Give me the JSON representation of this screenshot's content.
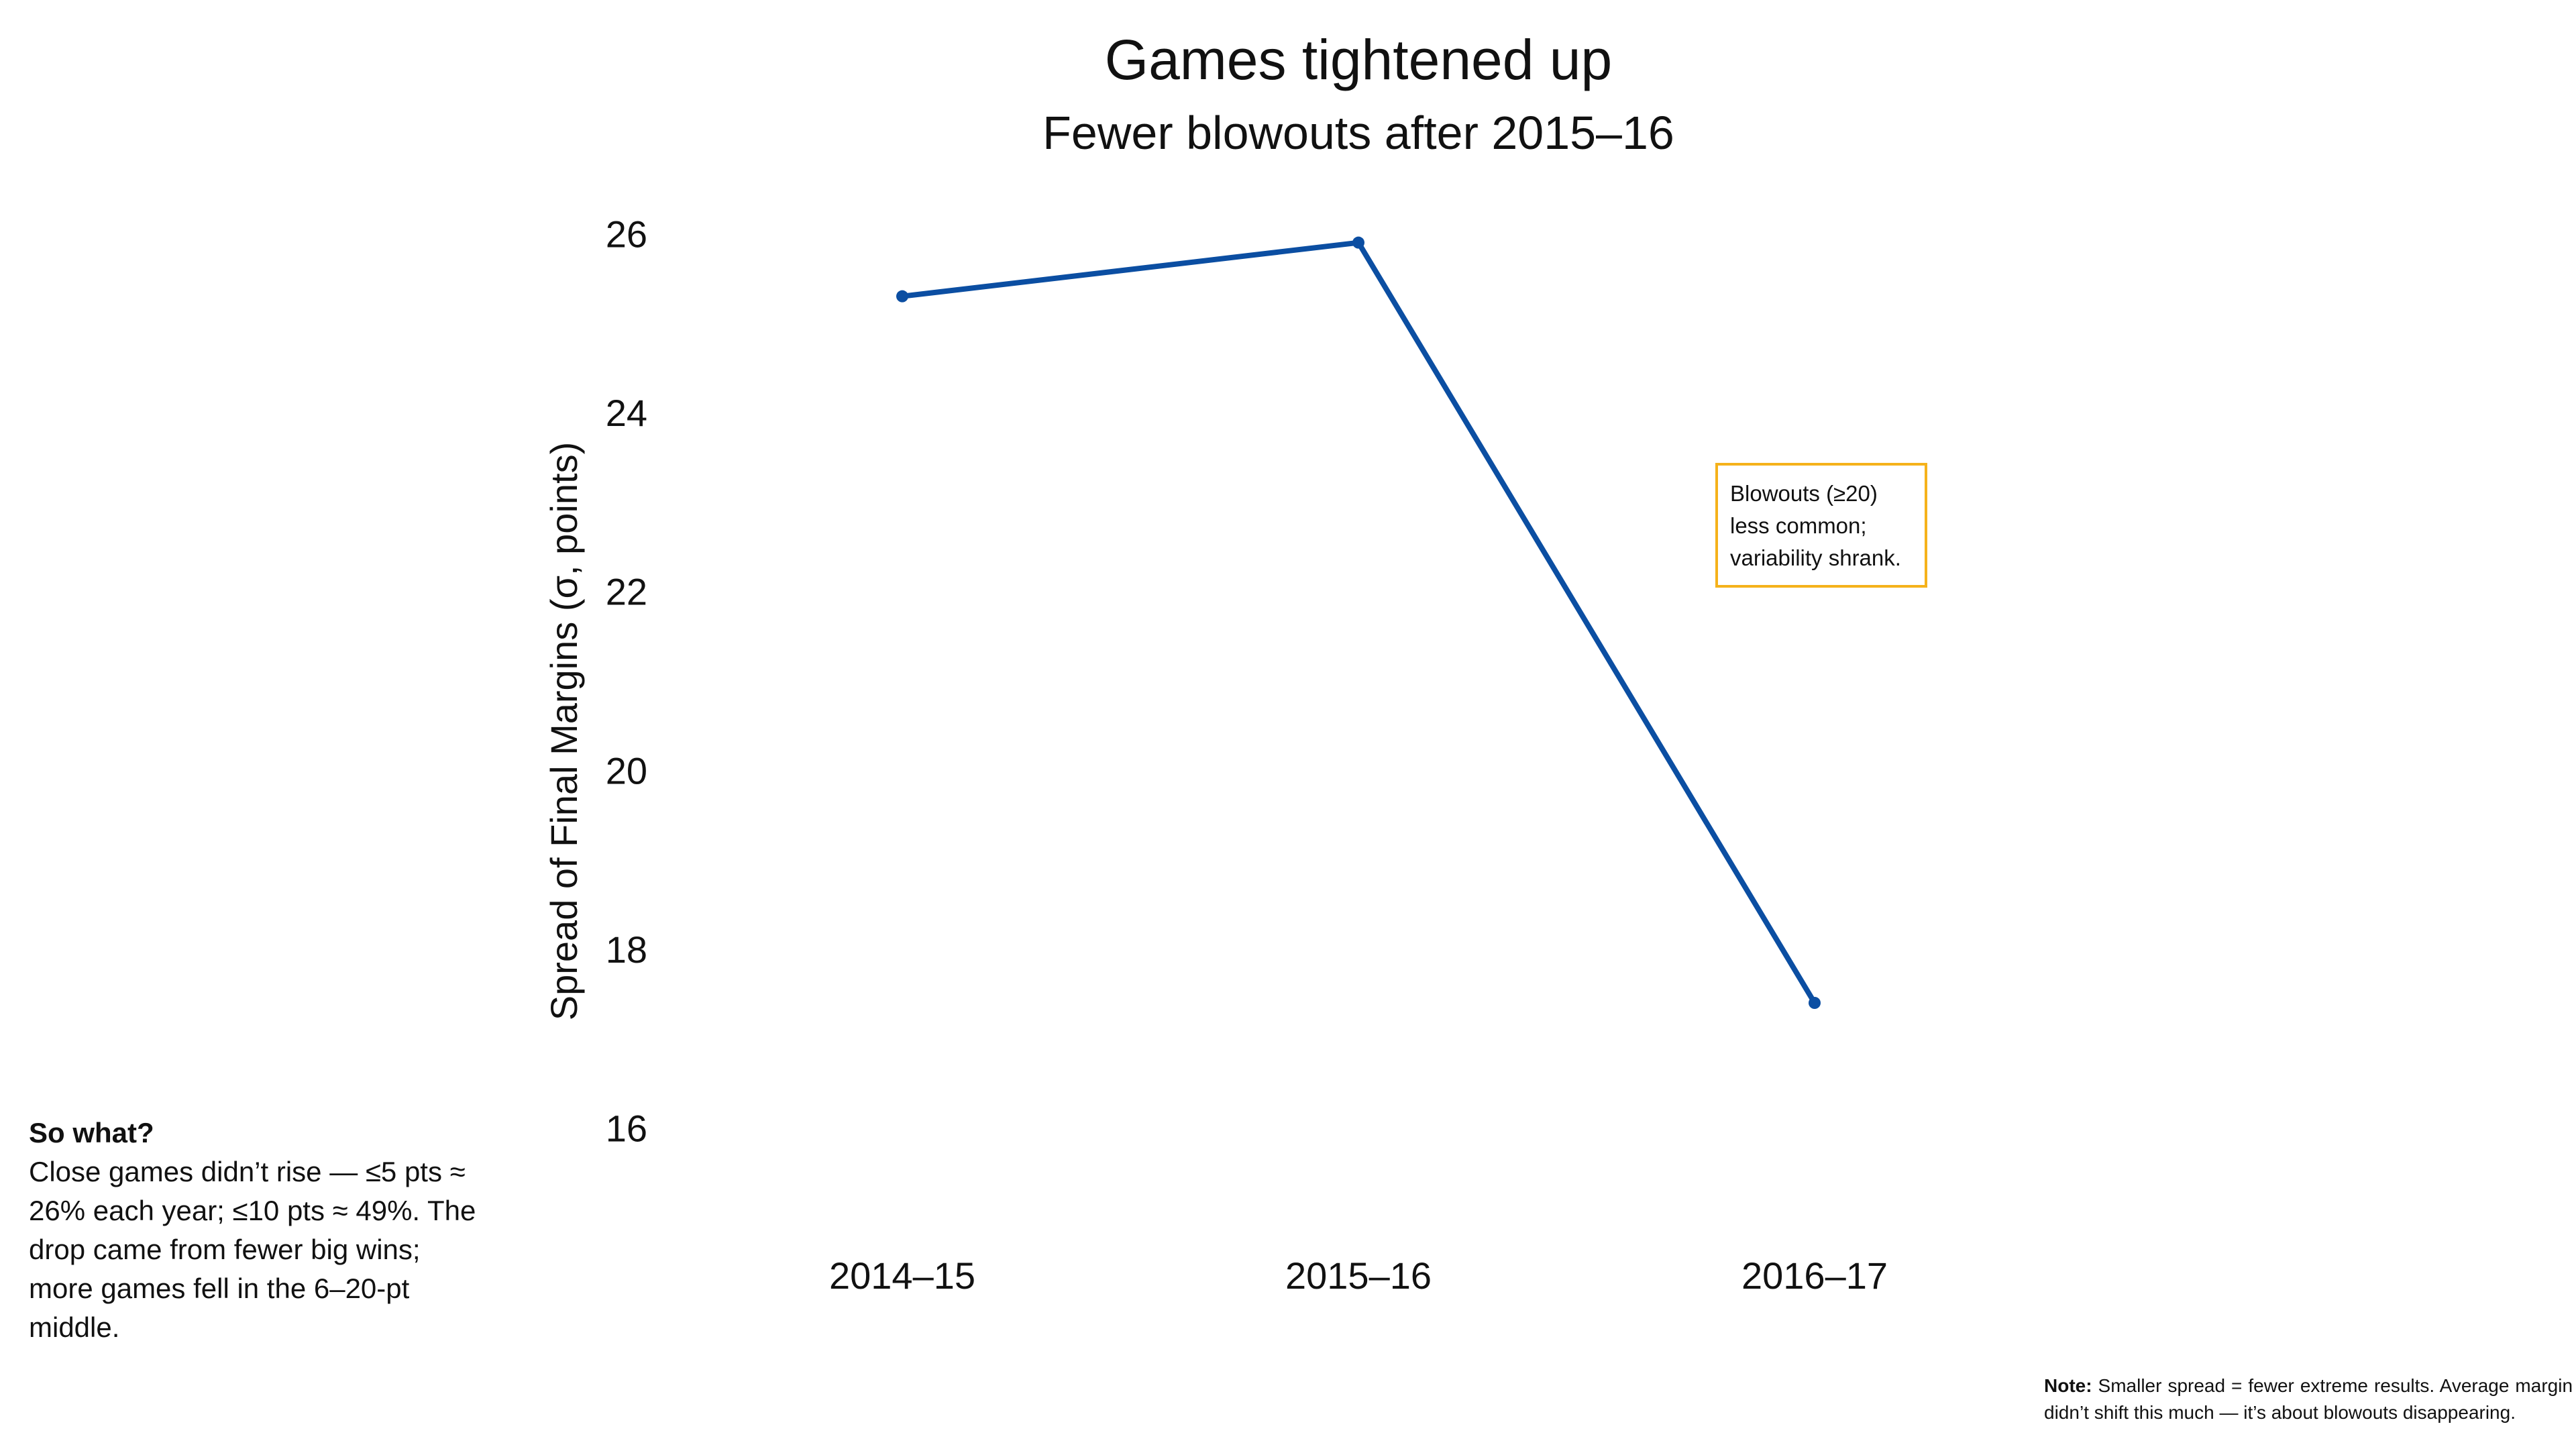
{
  "chart_data": {
    "type": "line",
    "title": "Games tightened up",
    "subtitle": "Fewer blowouts after 2015–16",
    "xlabel": "",
    "ylabel": "Spread of Final Margins (σ, points)",
    "categories": [
      "2014–15",
      "2015–16",
      "2016–17"
    ],
    "series": [
      {
        "values": [
          25.3,
          25.9,
          17.4
        ],
        "color": "#0b4ea2"
      }
    ],
    "ylim": [
      15,
      26.4
    ],
    "yticks": [
      16,
      18,
      20,
      22,
      24,
      26
    ],
    "grid": false,
    "annotation": {
      "lines": [
        "Blowouts (≥20)",
        "less common;",
        "variability shrank."
      ],
      "border_color": "#f5b21b"
    }
  },
  "side_note": {
    "heading": "So what?",
    "lines": [
      "Close games didn’t rise — ≤5 pts ≈",
      "26% each year; ≤10 pts ≈ 49%. The",
      "drop came from fewer big wins;",
      "more games fell in the 6–20-pt",
      "middle."
    ]
  },
  "footnote": {
    "label": "Note:",
    "text": "Smaller spread = fewer extreme results. Average margin didn’t shift this much — it’s about blowouts disappearing."
  }
}
